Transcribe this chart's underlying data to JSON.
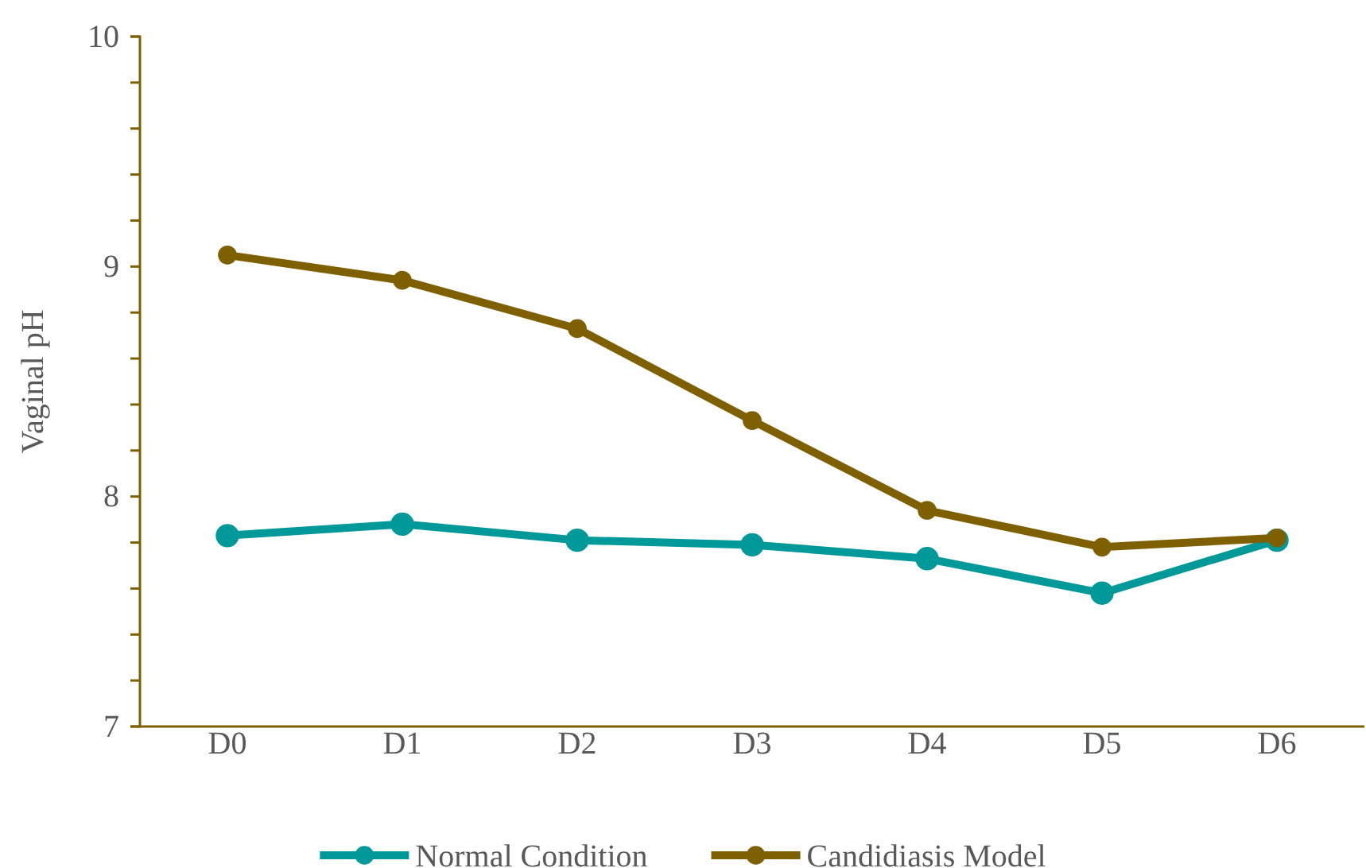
{
  "chart_data": {
    "type": "line",
    "ylabel": "Vaginal pH",
    "categories": [
      "D0",
      "D1",
      "D2",
      "D3",
      "D4",
      "D5",
      "D6"
    ],
    "series": [
      {
        "name": "Normal Condition",
        "color": "#009999",
        "values": [
          7.83,
          7.88,
          7.81,
          7.79,
          7.73,
          7.58,
          7.81
        ]
      },
      {
        "name": "Candidiasis Model",
        "color": "#7f6000",
        "values": [
          9.05,
          8.94,
          8.73,
          8.33,
          7.94,
          7.78,
          7.82
        ]
      }
    ],
    "ylim": [
      7,
      10
    ],
    "yticks": [
      7,
      {
        "value": 7.2,
        "label": null
      },
      {
        "value": 7.4,
        "label": null
      },
      {
        "value": 7.6,
        "label": null
      },
      {
        "value": 7.8,
        "label": null
      },
      8,
      {
        "value": 8.2,
        "label": null
      },
      {
        "value": 8.4,
        "label": null
      },
      {
        "value": 8.6,
        "label": null
      },
      {
        "value": 8.8,
        "label": null
      },
      9,
      {
        "value": 9.2,
        "label": null
      },
      {
        "value": 9.4,
        "label": null
      },
      {
        "value": 9.6,
        "label": null
      },
      {
        "value": 9.8,
        "label": null
      },
      10
    ],
    "grid": false,
    "legend": "bottom",
    "marker": "circle",
    "line_style": "solid"
  }
}
